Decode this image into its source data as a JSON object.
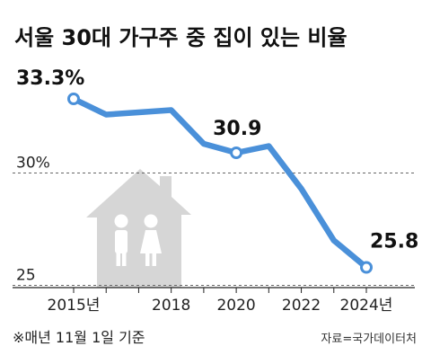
{
  "chart_data": {
    "type": "line",
    "title": "서울 30대 가구주 중 집이 있는 비율",
    "x": [
      2015,
      2016,
      2017,
      2018,
      2019,
      2020,
      2021,
      2022,
      2023,
      2024
    ],
    "series": [
      {
        "values": [
          33.3,
          32.6,
          32.7,
          32.8,
          31.3,
          30.9,
          31.2,
          29.3,
          27.0,
          25.8
        ]
      }
    ],
    "ylim": [
      24.5,
      34.5
    ],
    "x_ticks": [
      {
        "value": 2015,
        "label": "2015년"
      },
      {
        "value": 2018,
        "label": "2018"
      },
      {
        "value": 2020,
        "label": "2020"
      },
      {
        "value": 2022,
        "label": "2022"
      },
      {
        "value": 2024,
        "label": "2024년"
      }
    ],
    "y_ticks": [
      {
        "value": 30,
        "label": "30%"
      },
      {
        "value": 25,
        "label": "25"
      }
    ],
    "data_labels": [
      {
        "index": 0,
        "text": "33.3%"
      },
      {
        "index": 5,
        "text": "30.9"
      },
      {
        "index": 9,
        "text": "25.8"
      }
    ],
    "highlighted_points": [
      0,
      5,
      9
    ],
    "grid": "dashed horizontal at y ticks",
    "line_color": "#4a90d9",
    "house_color": "#d6d6d6",
    "footnote": "※매년 11월 1일 기준",
    "source": "자료=국가데이터처"
  }
}
